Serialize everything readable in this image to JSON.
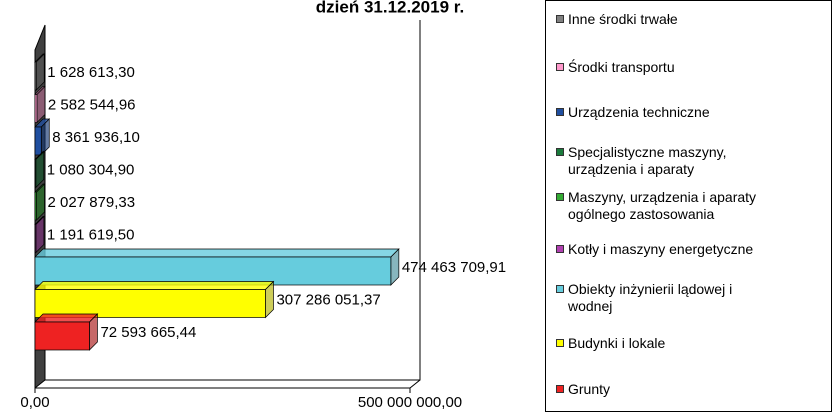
{
  "chart_data": {
    "type": "bar3d_horizontal",
    "title": "dzień 31.12.2019 r.",
    "categories": [
      "Inne środki trwałe",
      "Środki transportu",
      "Urządzenia techniczne",
      "Specjalistyczne maszyny,\nurządzenia i aparaty",
      "Maszyny, urządzenia i aparaty\nogólnego zastosowania",
      "Kotły i maszyny energetyczne",
      "Obiekty inżynierii lądowej i\nwodnej",
      "Budynki i lokale",
      "Grunty"
    ],
    "values": [
      1628613.3,
      2582544.96,
      8361936.1,
      1080304.9,
      2027879.33,
      1191619.5,
      474463709.91,
      307286051.37,
      72593665.44
    ],
    "value_labels": [
      "1 628 613,30",
      "2 582 544,96",
      "8 361 936,10",
      "1 080 304,90",
      "2 027 879,33",
      "1 191 619,50",
      "474 463 709,91",
      "307 286 051,37",
      "72 593 665,44"
    ],
    "colors": [
      "#808080",
      "#ff99cc",
      "#1f4e9f",
      "#1a7a3c",
      "#33aa33",
      "#b040b0",
      "#66ccdd",
      "#ffff00",
      "#ee2222"
    ],
    "xlim": [
      0,
      500000000
    ],
    "xticks": [
      {
        "value": 0,
        "label": "0,00"
      },
      {
        "value": 500000000,
        "label": "500 000 000,00"
      }
    ],
    "grid": false,
    "legend": "right"
  }
}
